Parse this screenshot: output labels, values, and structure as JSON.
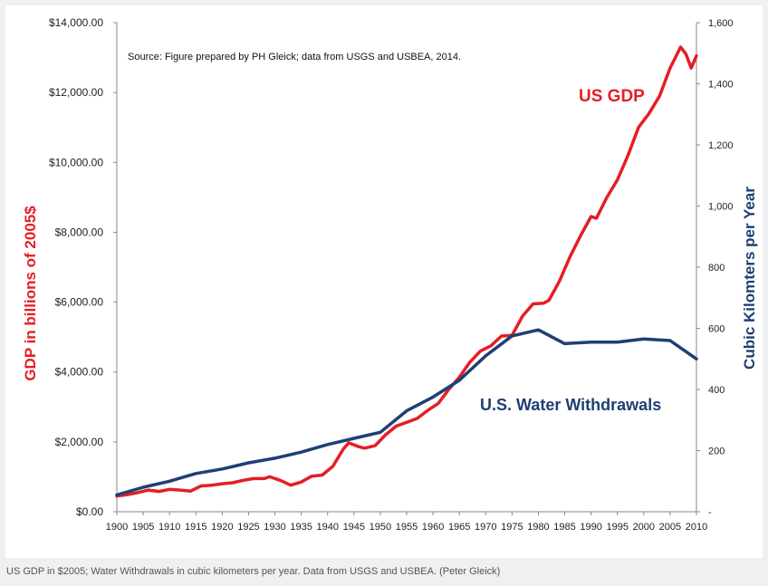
{
  "caption": "US GDP in $2005; Water Withdrawals in cubic kilometers per year. Data from USGS and USBEA. (Peter Gleick)",
  "chart_data": {
    "type": "line",
    "annotation": "Source: Figure prepared by PH Gleick; data from USGS and USBEA,  2014.",
    "ylabel_left": "GDP in billions of 2005$",
    "ylabel_right": "Cubic Kilomters per Year",
    "xlim": [
      1900,
      2010
    ],
    "ylim_left": [
      0,
      14000
    ],
    "ylim_right": [
      0,
      1600
    ],
    "x_ticks": [
      "1900",
      "1905",
      "1910",
      "1915",
      "1920",
      "1925",
      "1930",
      "1935",
      "1940",
      "1945",
      "1950",
      "1955",
      "1960",
      "1965",
      "1970",
      "1975",
      "1980",
      "1985",
      "1990",
      "1995",
      "2000",
      "2005",
      "2010"
    ],
    "y_ticks_left": [
      "$0.00",
      "$2,000.00",
      "$4,000.00",
      "$6,000.00",
      "$8,000.00",
      "$10,000.00",
      "$12,000.00",
      "$14,000.00"
    ],
    "y_ticks_right": [
      "-",
      "200",
      "400",
      "600",
      "800",
      "1,000",
      "1,200",
      "1,400",
      "1,600"
    ],
    "grid": false,
    "series": [
      {
        "name": "US GDP",
        "axis": "left",
        "color": "#e41e26",
        "x": [
          1900,
          1902,
          1904,
          1906,
          1908,
          1910,
          1912,
          1914,
          1916,
          1918,
          1920,
          1922,
          1924,
          1926,
          1928,
          1929,
          1931,
          1933,
          1935,
          1937,
          1939,
          1941,
          1943,
          1944,
          1946,
          1947,
          1949,
          1951,
          1953,
          1955,
          1957,
          1959,
          1961,
          1963,
          1965,
          1967,
          1969,
          1971,
          1973,
          1975,
          1977,
          1979,
          1981,
          1982,
          1984,
          1986,
          1988,
          1990,
          1991,
          1993,
          1995,
          1997,
          1999,
          2001,
          2003,
          2005,
          2007,
          2008,
          2009,
          2010
        ],
        "values": [
          450,
          490,
          550,
          620,
          580,
          640,
          620,
          590,
          740,
          760,
          800,
          830,
          900,
          950,
          950,
          1000,
          900,
          760,
          850,
          1020,
          1050,
          1300,
          1800,
          1970,
          1860,
          1820,
          1890,
          2200,
          2450,
          2560,
          2670,
          2900,
          3100,
          3500,
          3850,
          4280,
          4600,
          4750,
          5030,
          5050,
          5600,
          5950,
          5970,
          6050,
          6600,
          7300,
          7900,
          8450,
          8400,
          9000,
          9500,
          10200,
          11000,
          11400,
          11900,
          12700,
          13300,
          13100,
          12700,
          13050
        ]
      },
      {
        "name": "U.S. Water Withdrawals",
        "axis": "right",
        "color": "#1f3f74",
        "x": [
          1900,
          1905,
          1910,
          1915,
          1920,
          1925,
          1930,
          1935,
          1940,
          1945,
          1950,
          1955,
          1960,
          1965,
          1970,
          1975,
          1980,
          1985,
          1990,
          1995,
          2000,
          2005,
          2010
        ],
        "values": [
          55,
          80,
          100,
          125,
          140,
          160,
          175,
          195,
          220,
          240,
          260,
          330,
          375,
          430,
          510,
          575,
          595,
          550,
          555,
          555,
          565,
          560,
          500
        ]
      }
    ]
  }
}
